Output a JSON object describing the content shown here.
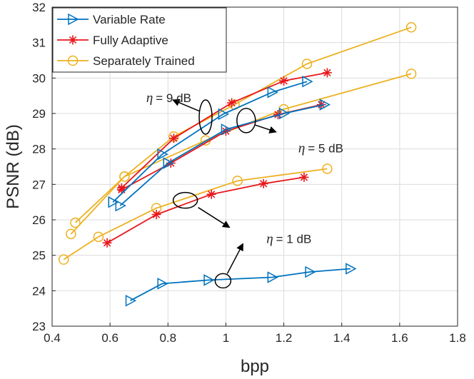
{
  "chart_data": {
    "type": "line",
    "xlabel": "bpp",
    "ylabel": "PSNR (dB)",
    "xlim": [
      0.4,
      1.8
    ],
    "ylim": [
      23,
      32
    ],
    "xticks": [
      "0.4",
      "0.6",
      "0.8",
      "1",
      "1.2",
      "1.4",
      "1.6",
      "1.8"
    ],
    "yticks": [
      "23",
      "24",
      "25",
      "26",
      "27",
      "28",
      "29",
      "30",
      "31",
      "32"
    ],
    "grid": true,
    "legend_position": "top-left",
    "legend": [
      "Variable Rate",
      "Fully Adaptive",
      "Separately Trained"
    ],
    "colors": {
      "Variable Rate": "#0072BD",
      "Fully Adaptive": "#E8161B",
      "Separately Trained": "#EDB120",
      "annotation": "#000000"
    },
    "series": [
      {
        "name": "Variable Rate",
        "marker": "triangle-right",
        "curves": [
          {
            "x": [
              0.67,
              0.78,
              0.94,
              1.16,
              1.29,
              1.43
            ],
            "y": [
              23.72,
              24.2,
              24.3,
              24.38,
              24.53,
              24.62
            ]
          },
          {
            "x": [
              0.635,
              0.8,
              1.0,
              1.2,
              1.34
            ],
            "y": [
              26.4,
              27.6,
              28.55,
              29.0,
              29.25
            ]
          },
          {
            "x": [
              0.61,
              0.78,
              0.99,
              1.16,
              1.28
            ],
            "y": [
              26.5,
              27.85,
              28.98,
              29.6,
              29.9
            ]
          }
        ]
      },
      {
        "name": "Fully Adaptive",
        "marker": "asterisk",
        "curves": [
          {
            "x": [
              0.59,
              0.76,
              0.95,
              1.13,
              1.27
            ],
            "y": [
              25.35,
              26.15,
              26.72,
              27.02,
              27.2
            ]
          },
          {
            "x": [
              0.64,
              0.81,
              1.0,
              1.18,
              1.33
            ],
            "y": [
              26.85,
              27.6,
              28.5,
              28.97,
              29.25
            ]
          },
          {
            "x": [
              0.64,
              0.82,
              1.02,
              1.2,
              1.35
            ],
            "y": [
              26.9,
              28.3,
              29.3,
              29.92,
              30.15
            ]
          }
        ]
      },
      {
        "name": "Separately Trained",
        "marker": "circle",
        "curves": [
          {
            "x": [
              0.44,
              0.56,
              0.76,
              1.04,
              1.35
            ],
            "y": [
              24.88,
              25.52,
              26.33,
              27.1,
              27.44
            ]
          },
          {
            "x": [
              0.465,
              0.65,
              0.93,
              1.2,
              1.64
            ],
            "y": [
              25.6,
              27.22,
              28.24,
              29.12,
              30.12
            ]
          },
          {
            "x": [
              0.48,
              0.65,
              0.82,
              1.03,
              1.28,
              1.64
            ],
            "y": [
              25.92,
              27.22,
              28.35,
              29.25,
              30.4,
              31.43
            ]
          }
        ]
      }
    ],
    "annotations": [
      {
        "label": "η = 9 dB",
        "text": "= 9 dB",
        "ellipse": [
          0.93,
          28.9
        ],
        "label_pos": [
          0.725,
          29.32
        ]
      },
      {
        "label": "η = 5 dB",
        "text": "= 5 dB",
        "ellipse": [
          1.07,
          28.8
        ],
        "label_pos": [
          1.25,
          27.9
        ]
      },
      {
        "label": "η = 1 dB",
        "text": "= 1 dB",
        "ellipse": [
          0.86,
          26.55
        ],
        "label_pos": [
          1.14,
          25.35
        ]
      },
      {
        "label": "η = 1 dB",
        "text": "",
        "ellipse": [
          0.99,
          24.28
        ],
        "label_pos": null
      }
    ],
    "eta_symbol": "η"
  }
}
